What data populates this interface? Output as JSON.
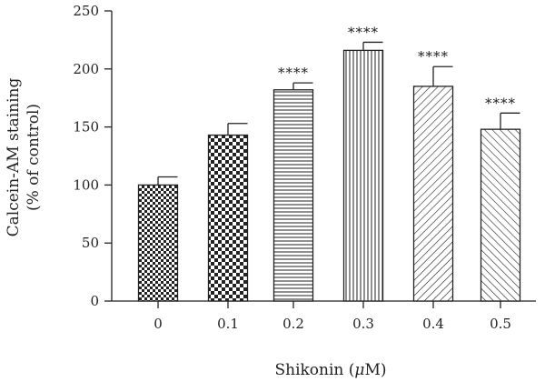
{
  "chart_data": {
    "type": "bar",
    "title": "",
    "xlabel_main": "Shikonin (",
    "xlabel_unit": "μ",
    "xlabel_tail": "M)",
    "ylabel_line1": "Calcein-AM staining",
    "ylabel_line2": "(% of control)",
    "ylim": [
      0,
      250
    ],
    "yticks": [
      0,
      50,
      100,
      150,
      200,
      250
    ],
    "categories": [
      "0",
      "0.1",
      "0.2",
      "0.3",
      "0.4",
      "0.5"
    ],
    "values": [
      100,
      143,
      182,
      216,
      185,
      148
    ],
    "errors": [
      7,
      10,
      6,
      7,
      17,
      14
    ],
    "significance": [
      "",
      "",
      "****",
      "****",
      "****",
      "****"
    ],
    "patterns": [
      "checker-small",
      "checker-large",
      "horizontal",
      "vertical",
      "diagonal-up",
      "diagonal-down"
    ],
    "grid": false,
    "legend": "none",
    "colors": {
      "ink": "#222222",
      "fill": "#ffffff"
    }
  }
}
